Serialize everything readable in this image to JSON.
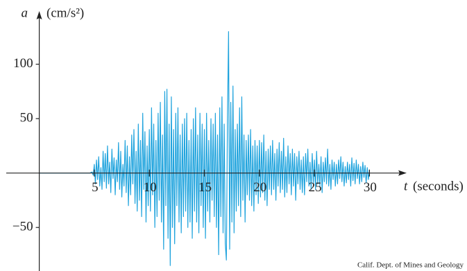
{
  "chart_data": {
    "type": "line",
    "y_label": "a",
    "y_unit": "(cm/s²)",
    "x_label": "t",
    "x_unit": "(seconds)",
    "source": "Calif. Dept. of Mines and Geology",
    "xlim": [
      -3,
      33
    ],
    "ylim": [
      -90,
      145
    ],
    "xticks": [
      5,
      10,
      15,
      20,
      25,
      30
    ],
    "yticks": [
      {
        "value": -50,
        "label": "−50"
      },
      50,
      100
    ],
    "grid": false,
    "x": [
      0,
      4.6,
      4.8,
      4.9,
      5.0,
      5.1,
      5.2,
      5.3,
      5.4,
      5.5,
      5.6,
      5.7,
      5.8,
      5.9,
      6.0,
      6.1,
      6.2,
      6.3,
      6.4,
      6.5,
      6.6,
      6.7,
      6.8,
      6.9,
      7.0,
      7.1,
      7.2,
      7.3,
      7.4,
      7.5,
      7.6,
      7.7,
      7.8,
      7.9,
      8.0,
      8.1,
      8.2,
      8.3,
      8.4,
      8.5,
      8.6,
      8.7,
      8.8,
      8.9,
      9.0,
      9.1,
      9.2,
      9.3,
      9.4,
      9.5,
      9.6,
      9.7,
      9.8,
      9.9,
      10.0,
      10.1,
      10.2,
      10.3,
      10.4,
      10.5,
      10.6,
      10.7,
      10.8,
      10.9,
      11.0,
      11.1,
      11.2,
      11.3,
      11.4,
      11.5,
      11.6,
      11.7,
      11.8,
      11.9,
      12.0,
      12.1,
      12.2,
      12.3,
      12.4,
      12.5,
      12.6,
      12.7,
      12.8,
      12.9,
      13.0,
      13.1,
      13.2,
      13.3,
      13.4,
      13.5,
      13.6,
      13.7,
      13.8,
      13.9,
      14.0,
      14.1,
      14.2,
      14.3,
      14.4,
      14.5,
      14.6,
      14.7,
      14.8,
      14.9,
      15.0,
      15.1,
      15.2,
      15.3,
      15.4,
      15.5,
      15.6,
      15.7,
      15.8,
      15.9,
      16.0,
      16.1,
      16.2,
      16.3,
      16.4,
      16.5,
      16.6,
      16.7,
      16.8,
      16.9,
      17.0,
      17.1,
      17.2,
      17.3,
      17.4,
      17.5,
      17.6,
      17.7,
      17.8,
      17.9,
      18.0,
      18.1,
      18.2,
      18.3,
      18.4,
      18.5,
      18.6,
      18.7,
      18.8,
      18.9,
      19.0,
      19.1,
      19.2,
      19.3,
      19.4,
      19.5,
      19.6,
      19.7,
      19.8,
      19.9,
      20.0,
      20.1,
      20.2,
      20.3,
      20.4,
      20.5,
      20.6,
      20.7,
      20.8,
      20.9,
      21.0,
      21.1,
      21.2,
      21.3,
      21.4,
      21.5,
      21.6,
      21.7,
      21.8,
      21.9,
      22.0,
      22.1,
      22.2,
      22.3,
      22.4,
      22.5,
      22.6,
      22.7,
      22.8,
      22.9,
      23.0,
      23.1,
      23.2,
      23.3,
      23.4,
      23.5,
      23.6,
      23.7,
      23.8,
      23.9,
      24.0,
      24.1,
      24.2,
      24.3,
      24.4,
      24.5,
      24.6,
      24.7,
      24.8,
      24.9,
      25.0,
      25.1,
      25.2,
      25.3,
      25.4,
      25.5,
      25.6,
      25.7,
      25.8,
      25.9,
      26.0,
      26.1,
      26.2,
      26.3,
      26.4,
      26.5,
      26.6,
      26.7,
      26.8,
      26.9,
      27.0,
      27.1,
      27.2,
      27.3,
      27.4,
      27.5,
      27.6,
      27.7,
      27.8,
      27.9,
      28.0,
      28.1,
      28.2,
      28.3,
      28.4,
      28.5,
      28.6,
      28.7,
      28.8,
      28.9,
      29.0,
      29.1,
      29.2,
      29.3,
      29.4,
      29.5,
      29.6,
      29.7,
      29.8,
      29.9,
      30.0
    ],
    "series": [
      {
        "color": "#1fa3dd",
        "values": [
          0,
          0,
          1,
          -2,
          8,
          -10,
          12,
          -6,
          15,
          -12,
          5,
          -15,
          20,
          -8,
          18,
          -14,
          25,
          -10,
          10,
          -18,
          22,
          -5,
          14,
          -20,
          12,
          -8,
          28,
          -15,
          20,
          -22,
          8,
          -12,
          30,
          -18,
          25,
          -30,
          15,
          -20,
          35,
          -10,
          40,
          -28,
          20,
          -35,
          45,
          -25,
          30,
          -40,
          55,
          -15,
          38,
          -45,
          25,
          -30,
          40,
          -35,
          60,
          -20,
          45,
          -50,
          30,
          -40,
          55,
          -25,
          65,
          -45,
          35,
          -70,
          75,
          -30,
          77,
          -60,
          45,
          -85,
          70,
          -50,
          40,
          -65,
          55,
          -30,
          60,
          -45,
          35,
          -55,
          45,
          -40,
          50,
          -35,
          55,
          -50,
          30,
          -45,
          40,
          -60,
          50,
          -35,
          60,
          -45,
          35,
          -55,
          55,
          -30,
          45,
          -50,
          40,
          -60,
          55,
          -35,
          30,
          -45,
          50,
          -25,
          45,
          -40,
          55,
          -50,
          35,
          -75,
          60,
          -40,
          70,
          -55,
          45,
          -65,
          -80,
          50,
          130,
          -70,
          65,
          -45,
          80,
          -55,
          40,
          -35,
          45,
          -30,
          60,
          -40,
          70,
          -25,
          35,
          -45,
          30,
          -20,
          35,
          -25,
          40,
          -30,
          25,
          -35,
          30,
          -20,
          25,
          -28,
          30,
          -22,
          28,
          -18,
          35,
          -25,
          20,
          -30,
          22,
          -15,
          25,
          -20,
          30,
          -15,
          18,
          -25,
          22,
          -12,
          28,
          -18,
          20,
          -15,
          32,
          -22,
          15,
          -18,
          25,
          -10,
          18,
          -20,
          22,
          -12,
          18,
          -25,
          15,
          -10,
          20,
          -15,
          12,
          -18,
          15,
          -20,
          18,
          -8,
          22,
          -12,
          10,
          -15,
          18,
          -10,
          12,
          -15,
          20,
          -10,
          8,
          -12,
          15,
          -18,
          10,
          -8,
          14,
          -10,
          22,
          -12,
          8,
          -15,
          12,
          -6,
          10,
          -12,
          8,
          -10,
          12,
          -5,
          15,
          -8,
          10,
          -12,
          6,
          -9,
          10,
          -6,
          8,
          -12,
          14,
          -7,
          9,
          -10,
          12,
          -5,
          8,
          -10,
          6,
          -8,
          10,
          -4,
          7,
          -9,
          5,
          -6,
          3
        ]
      }
    ]
  }
}
